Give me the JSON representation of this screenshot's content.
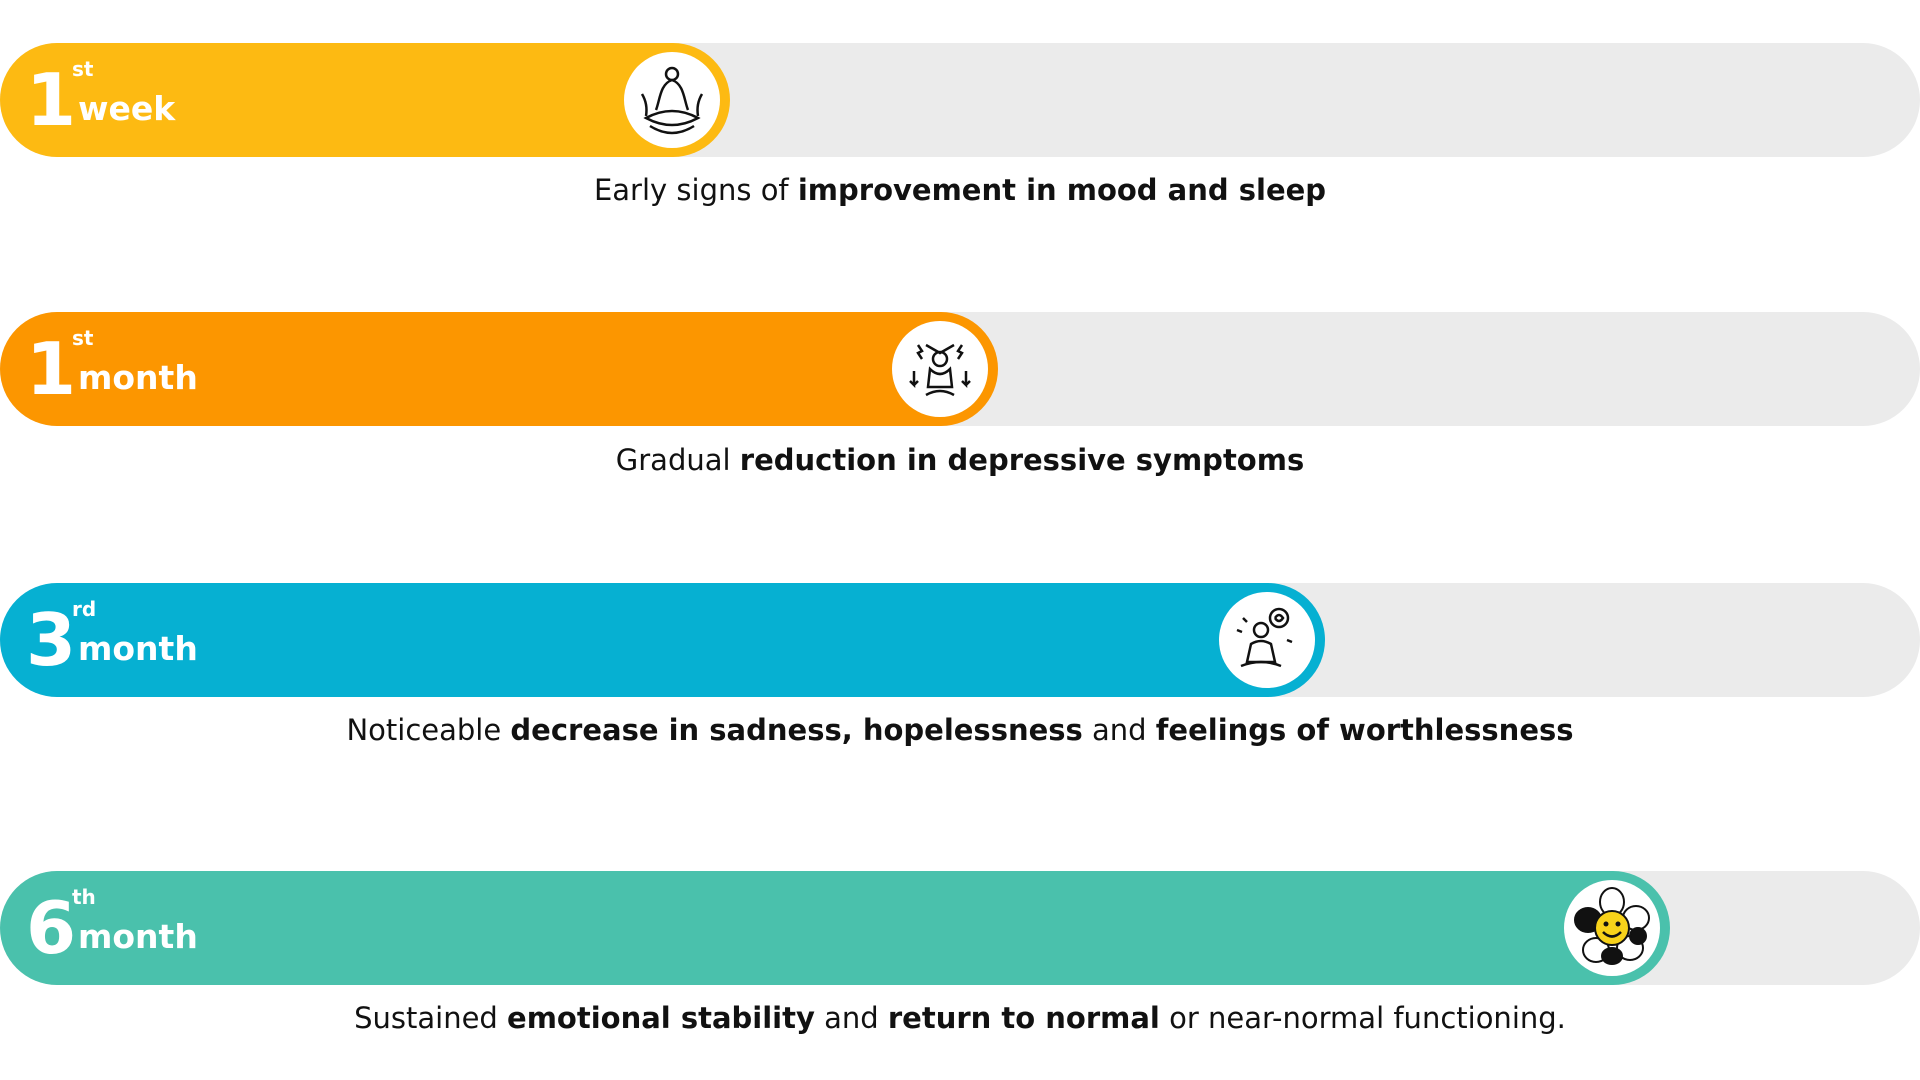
{
  "colors": {
    "track": "#ebebeb",
    "week1": "#fdba12",
    "month1": "#fc9600",
    "month3": "#06b0d2",
    "month6": "#4ac1ac"
  },
  "milestones": [
    {
      "number": "1",
      "suffix": "st",
      "unit": "week",
      "progress": 0.38,
      "color": "#fdba12",
      "icon": "meditation-icon",
      "caption": [
        {
          "t": "Early signs of ",
          "b": false
        },
        {
          "t": "improvement in mood and sleep",
          "b": true
        }
      ]
    },
    {
      "number": "1",
      "suffix": "st",
      "unit": "month",
      "progress": 0.52,
      "color": "#fc9600",
      "icon": "stress-relief-icon",
      "caption": [
        {
          "t": "Gradual ",
          "b": false
        },
        {
          "t": "reduction in depressive symptoms",
          "b": true
        }
      ]
    },
    {
      "number": "3",
      "suffix": "rd",
      "unit": "month",
      "progress": 0.69,
      "color": "#06b0d2",
      "icon": "mindful-person-icon",
      "caption": [
        {
          "t": "Noticeable ",
          "b": false
        },
        {
          "t": "decrease in sadness, hopelessness",
          "b": true
        },
        {
          "t": " and ",
          "b": false
        },
        {
          "t": "feelings of worthlessness",
          "b": true
        }
      ]
    },
    {
      "number": "6",
      "suffix": "th",
      "unit": "month",
      "progress": 0.87,
      "color": "#4ac1ac",
      "icon": "smiling-flower-icon",
      "caption": [
        {
          "t": "Sustained ",
          "b": false
        },
        {
          "t": "emotional stability",
          "b": true
        },
        {
          "t": " and ",
          "b": false
        },
        {
          "t": "return to normal",
          "b": true
        },
        {
          "t": " or near-normal functioning.",
          "b": false
        }
      ]
    }
  ]
}
